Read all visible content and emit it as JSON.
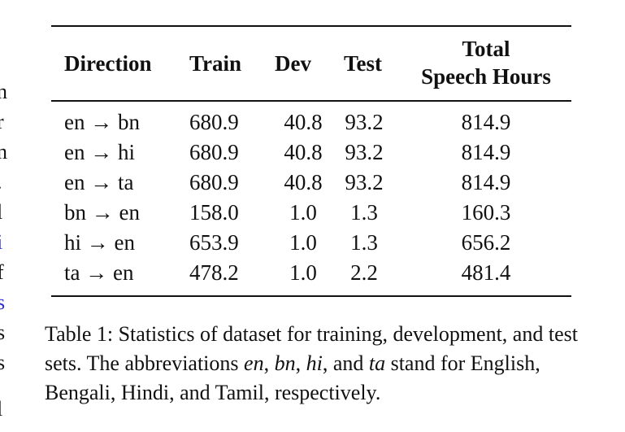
{
  "margin_fragments": [
    "n",
    "r",
    "n",
    ".",
    "l",
    "i",
    "f",
    "s",
    "s",
    "s",
    "l"
  ],
  "table": {
    "headers": {
      "direction": "Direction",
      "train": "Train",
      "dev": "Dev",
      "test": "Test",
      "total_line1": "Total",
      "total_line2": "Speech Hours"
    },
    "rows": [
      {
        "direction": "en → bn",
        "train": "680.9",
        "dev": "40.8",
        "test": "93.2",
        "total": "814.9"
      },
      {
        "direction": "en → hi",
        "train": "680.9",
        "dev": "40.8",
        "test": "93.2",
        "total": "814.9"
      },
      {
        "direction": "en → ta",
        "train": "680.9",
        "dev": "40.8",
        "test": "93.2",
        "total": "814.9"
      },
      {
        "direction": "bn → en",
        "train": "158.0",
        "dev": "1.0",
        "test": "1.3",
        "total": "160.3"
      },
      {
        "direction": "hi → en",
        "train": "653.9",
        "dev": "1.0",
        "test": "1.3",
        "total": "656.2"
      },
      {
        "direction": "ta → en",
        "train": "478.2",
        "dev": "1.0",
        "test": "2.2",
        "total": "481.4"
      }
    ]
  },
  "caption": {
    "part1": "Table 1: Statistics of dataset for training, development, and test sets. The abbreviations ",
    "abbr_en": "en",
    "sep1": ", ",
    "abbr_bn": "bn",
    "sep2": ", ",
    "abbr_hi": "hi",
    "sep3": ", and ",
    "abbr_ta": "ta",
    "part2": " stand for English, Bengali, Hindi, and Tamil, respectively."
  }
}
